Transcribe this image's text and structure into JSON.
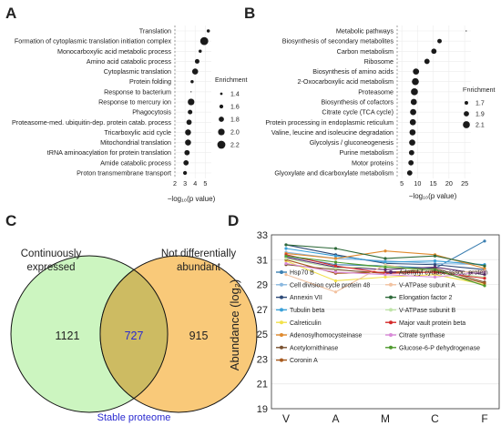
{
  "panel_letters": [
    "A",
    "B",
    "C",
    "D"
  ],
  "colors": {
    "dot": "#1a1a1a",
    "set_left": "#ccf5c0",
    "set_right": "#f9c979",
    "overlap": "#cdbb62",
    "overlap_text": "#2a2ad0",
    "stable_label": "#2a2ad0"
  },
  "chart_data": [
    {
      "type": "scatter",
      "panel": "A",
      "xlabel": "−log₁₀(p value)",
      "xticks": [
        2,
        3,
        4,
        5
      ],
      "xlim": [
        2,
        5.6
      ],
      "categories": [
        "Translation",
        "Formation of cytoplasmic translation initiation complex",
        "Monocarboxylic acid metabolic process",
        "Amino acid catabolic process",
        "Cytoplasmic translation",
        "Protein folding",
        "Response to bacterium",
        "Response to mercury ion",
        "Phagocytosis",
        "Proteasome-med. ubiquitin-dep. protein catab. process",
        "Tricarboxylic acid cycle",
        "Mitochondrial translation",
        "tRNA aminoacylation for protein translation",
        "Amide catabolic process",
        "Proton transmembrane transport"
      ],
      "x": [
        5.3,
        4.9,
        4.5,
        4.2,
        4.0,
        3.7,
        3.6,
        3.6,
        3.5,
        3.4,
        3.3,
        3.3,
        3.2,
        3.1,
        3.0
      ],
      "size": [
        1.5,
        2.2,
        1.5,
        1.7,
        1.9,
        1.5,
        1.2,
        2.0,
        1.7,
        1.8,
        1.9,
        1.9,
        1.8,
        1.8,
        1.6
      ],
      "legend_title": "Enrichment",
      "legend_values": [
        1.4,
        1.6,
        1.8,
        2.0,
        2.2
      ]
    },
    {
      "type": "scatter",
      "panel": "B",
      "xlabel": "−log₁₀(p value)",
      "xticks": [
        5,
        10,
        15,
        20,
        25
      ],
      "xlim": [
        3.5,
        27
      ],
      "categories": [
        "Metabolic pathways",
        "Biosynthesis of secondary  metabolites",
        "Carbon metabolism",
        "Ribosome",
        "Biosynthesis of amino acids",
        "2-Oxocarboxylic acid metabolism",
        "Proteasome",
        "Biosynthesis of cofactors",
        "Citrate cycle (TCA cycle)",
        "Protein processing in endoplasmic reticulum",
        "Valine, leucine and isoleucine degradation",
        "Glycolysis / gluconeogenesis",
        "Purine metabolism",
        "Motor proteins",
        "Glyoxylate and dicarboxylate metabolism"
      ],
      "x": [
        25.5,
        17,
        15.2,
        13,
        9.5,
        9.3,
        9.0,
        8.8,
        8.6,
        8.5,
        8.4,
        8.3,
        8.1,
        7.9,
        7.5
      ],
      "size": [
        1.4,
        1.8,
        1.9,
        1.9,
        2.0,
        2.1,
        2.1,
        2.0,
        2.0,
        2.0,
        2.0,
        2.0,
        1.9,
        1.9,
        1.9
      ],
      "legend_title": "Enrichment",
      "legend_values": [
        1.7,
        1.9,
        2.1
      ]
    },
    {
      "type": "venn",
      "panel": "C",
      "sets": [
        {
          "name": "Continuously expressed",
          "only": 1121
        },
        {
          "name": "Not differentially abundant",
          "only": 915
        }
      ],
      "intersection": 727,
      "intersection_label": "Stable proteome"
    },
    {
      "type": "line",
      "panel": "D",
      "categories": [
        "V",
        "A",
        "M",
        "C",
        "F"
      ],
      "ylabel": "Abundance (log₂)",
      "yticks": [
        19,
        21,
        23,
        25,
        27,
        29,
        31,
        33
      ],
      "ylim": [
        19,
        33
      ],
      "series": [
        {
          "name": "Hsp70 B",
          "color": "#3c7fb1",
          "values": [
            31.3,
            30.6,
            30.5,
            30.3,
            32.5
          ]
        },
        {
          "name": "Cell division cycle protein 48",
          "color": "#8ab8e0",
          "values": [
            31.6,
            31.1,
            30.9,
            30.7,
            30.6
          ]
        },
        {
          "name": "Annexin VII",
          "color": "#2e4a78",
          "values": [
            32.2,
            31.4,
            30.7,
            30.6,
            30.2
          ]
        },
        {
          "name": "Tubulin beta",
          "color": "#3aa0d8",
          "values": [
            31.9,
            31.3,
            30.8,
            30.9,
            30.6
          ]
        },
        {
          "name": "Calreticulin",
          "color": "#f2e14a",
          "values": [
            30.9,
            29.3,
            29.6,
            29.8,
            29.0
          ]
        },
        {
          "name": "Adenosylhomocysteinase",
          "color": "#e08a2e",
          "values": [
            31.5,
            31.1,
            31.7,
            31.4,
            30.3
          ]
        },
        {
          "name": "Acetylornithinase",
          "color": "#7a5130",
          "values": [
            30.6,
            30.2,
            29.9,
            30.3,
            29.2
          ]
        },
        {
          "name": "Coronin A",
          "color": "#a85a1e",
          "values": [
            31.0,
            29.9,
            30.0,
            30.1,
            29.1
          ]
        },
        {
          "name": "Adenylyl cyclase-assoc. protein",
          "color": "#5a2a6e",
          "values": [
            31.2,
            30.4,
            30.2,
            30.4,
            29.8
          ]
        },
        {
          "name": "V-ATPase subunit A",
          "color": "#f2c2a0",
          "values": [
            29.8,
            28.4,
            30.6,
            29.9,
            30.1
          ]
        },
        {
          "name": "Elongation factor 2",
          "color": "#2e6a3a",
          "values": [
            32.2,
            31.9,
            31.1,
            31.3,
            30.5
          ]
        },
        {
          "name": "V-ATPase subunit B",
          "color": "#bfe3a8",
          "values": [
            31.1,
            30.3,
            30.5,
            30.0,
            29.6
          ]
        },
        {
          "name": "Major vault protein beta",
          "color": "#d42a2a",
          "values": [
            31.4,
            30.5,
            29.9,
            30.0,
            29.5
          ]
        },
        {
          "name": "Citrate synthase",
          "color": "#d98ad8",
          "values": [
            30.7,
            30.0,
            29.8,
            29.6,
            30.0
          ]
        },
        {
          "name": "Glucose-6-P dehydrogenase",
          "color": "#4f9a2e",
          "values": [
            31.3,
            30.8,
            30.4,
            30.2,
            28.9
          ]
        }
      ]
    }
  ]
}
